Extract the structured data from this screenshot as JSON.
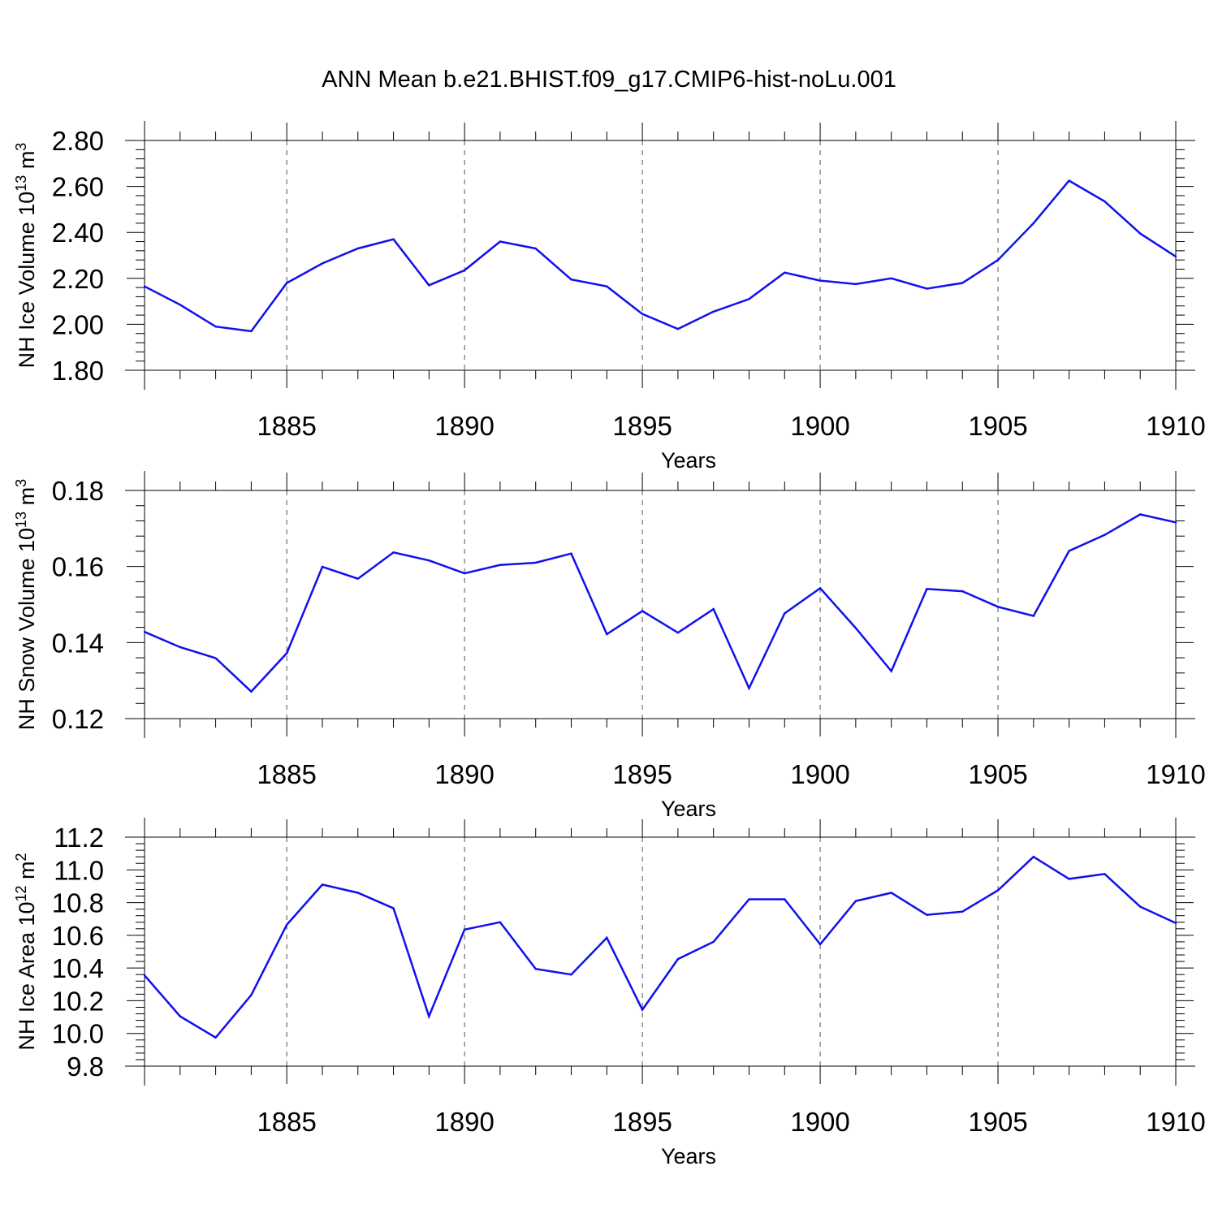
{
  "title": "ANN Mean b.e21.BHIST.f09_g17.CMIP6-hist-noLu.001",
  "colors": {
    "line": "#1010ee",
    "axis": "#000000",
    "grid": "#555555"
  },
  "chart_data": [
    {
      "type": "line",
      "ylabel": "NH Ice Volume 10",
      "ylabel_exponent": "13",
      "ylabel_unit": "m",
      "ylabel_unit_exponent": "3",
      "xlabel": "Years",
      "xlim": [
        1881,
        1910
      ],
      "ylim": [
        1.8,
        2.8
      ],
      "x_ticks": [
        1885,
        1890,
        1895,
        1900,
        1905,
        1910
      ],
      "x_tick_labels": [
        "1885",
        "1890",
        "1895",
        "1900",
        "1905",
        "1910"
      ],
      "y_ticks": [
        1.8,
        2.0,
        2.2,
        2.4,
        2.6,
        2.8
      ],
      "y_tick_labels": [
        "1.80",
        "2.00",
        "2.20",
        "2.40",
        "2.60",
        "2.80"
      ],
      "grid": "vertical dashed at major x ticks",
      "x": [
        1881,
        1882,
        1883,
        1884,
        1885,
        1886,
        1887,
        1888,
        1889,
        1890,
        1891,
        1892,
        1893,
        1894,
        1895,
        1896,
        1897,
        1898,
        1899,
        1900,
        1901,
        1902,
        1903,
        1904,
        1905,
        1906,
        1907,
        1908,
        1909,
        1910
      ],
      "values": [
        2.165,
        2.085,
        1.99,
        1.97,
        2.18,
        2.265,
        2.33,
        2.37,
        2.17,
        2.235,
        2.36,
        2.33,
        2.195,
        2.165,
        2.045,
        1.98,
        2.055,
        2.11,
        2.225,
        2.19,
        2.175,
        2.2,
        2.155,
        2.18,
        2.28,
        2.44,
        2.625,
        2.535,
        2.395,
        2.295
      ]
    },
    {
      "type": "line",
      "ylabel": "NH Snow Volume 10",
      "ylabel_exponent": "13",
      "ylabel_unit": "m",
      "ylabel_unit_exponent": "3",
      "xlabel": "Years",
      "xlim": [
        1881,
        1910
      ],
      "ylim": [
        0.12,
        0.18
      ],
      "x_ticks": [
        1885,
        1890,
        1895,
        1900,
        1905,
        1910
      ],
      "x_tick_labels": [
        "1885",
        "1890",
        "1895",
        "1900",
        "1905",
        "1910"
      ],
      "y_ticks": [
        0.12,
        0.14,
        0.16,
        0.18
      ],
      "y_tick_labels": [
        "0.12",
        "0.14",
        "0.16",
        "0.18"
      ],
      "grid": "vertical dashed at major x ticks",
      "x": [
        1881,
        1882,
        1883,
        1884,
        1885,
        1886,
        1887,
        1888,
        1889,
        1890,
        1891,
        1892,
        1893,
        1894,
        1895,
        1896,
        1897,
        1898,
        1899,
        1900,
        1901,
        1902,
        1903,
        1904,
        1905,
        1906,
        1907,
        1908,
        1909,
        1910
      ],
      "values": [
        0.1428,
        0.1388,
        0.1359,
        0.1271,
        0.1372,
        0.1599,
        0.1568,
        0.1637,
        0.1616,
        0.1582,
        0.1604,
        0.161,
        0.1634,
        0.1422,
        0.1483,
        0.1426,
        0.1488,
        0.128,
        0.1477,
        0.1543,
        0.1438,
        0.1325,
        0.1541,
        0.1535,
        0.1494,
        0.147,
        0.1641,
        0.1683,
        0.1737,
        0.1716
      ]
    },
    {
      "type": "line",
      "ylabel": "NH Ice Area 10",
      "ylabel_exponent": "12",
      "ylabel_unit": "m",
      "ylabel_unit_exponent": "2",
      "xlabel": "Years",
      "xlim": [
        1881,
        1910
      ],
      "ylim": [
        9.8,
        11.2
      ],
      "x_ticks": [
        1885,
        1890,
        1895,
        1900,
        1905,
        1910
      ],
      "x_tick_labels": [
        "1885",
        "1890",
        "1895",
        "1900",
        "1905",
        "1910"
      ],
      "y_ticks": [
        9.8,
        10.0,
        10.2,
        10.4,
        10.6,
        10.8,
        11.0,
        11.2
      ],
      "y_tick_labels": [
        "9.8",
        "10.0",
        "10.2",
        "10.4",
        "10.6",
        "10.8",
        "11.0",
        "11.2"
      ],
      "grid": "vertical dashed at major x ticks",
      "x": [
        1881,
        1882,
        1883,
        1884,
        1885,
        1886,
        1887,
        1888,
        1889,
        1890,
        1891,
        1892,
        1893,
        1894,
        1895,
        1896,
        1897,
        1898,
        1899,
        1900,
        1901,
        1902,
        1903,
        1904,
        1905,
        1906,
        1907,
        1908,
        1909,
        1910
      ],
      "values": [
        10.355,
        10.105,
        9.975,
        10.235,
        10.665,
        10.91,
        10.86,
        10.765,
        10.105,
        10.635,
        10.68,
        10.395,
        10.36,
        10.585,
        10.145,
        10.455,
        10.56,
        10.82,
        10.82,
        10.545,
        10.81,
        10.86,
        10.725,
        10.745,
        10.875,
        11.08,
        10.945,
        10.975,
        10.775,
        10.675
      ]
    }
  ]
}
